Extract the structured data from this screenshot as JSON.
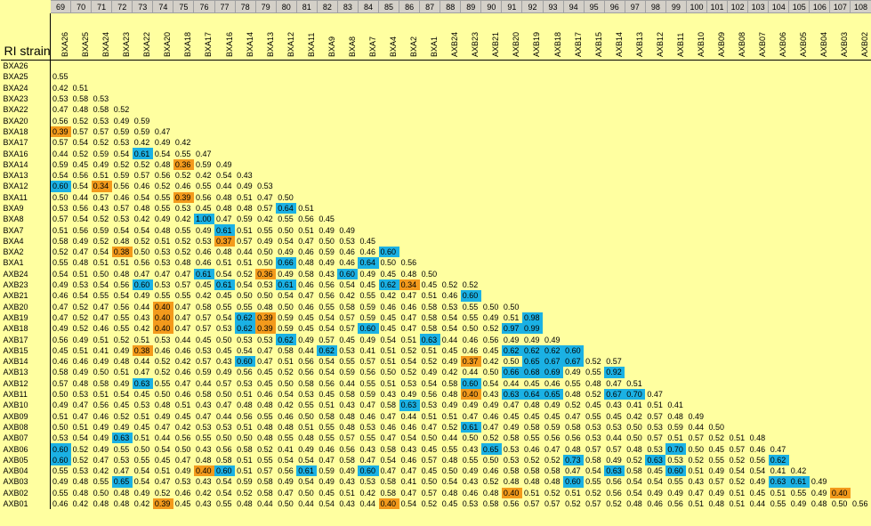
{
  "header_label": "RI strain",
  "colors": {
    "background": "#ffffa0",
    "low": "#f39a1c",
    "high": "#1bb1e4"
  },
  "col_numbers": [
    "69",
    "70",
    "71",
    "72",
    "73",
    "74",
    "75",
    "76",
    "77",
    "78",
    "79",
    "80",
    "81",
    "82",
    "83",
    "84",
    "85",
    "86",
    "87",
    "88",
    "89",
    "90",
    "91",
    "92",
    "93",
    "94",
    "95",
    "96",
    "97",
    "98",
    "99",
    "100",
    "101",
    "102",
    "103",
    "104",
    "105",
    "106",
    "107",
    "108"
  ],
  "strains": [
    "BXA26",
    "BXA25",
    "BXA24",
    "BXA23",
    "BXA22",
    "BXA20",
    "BXA18",
    "BXA17",
    "BXA16",
    "BXA14",
    "BXA13",
    "BXA12",
    "BXA11",
    "BXA9",
    "BXA8",
    "BXA7",
    "BXA4",
    "BXA2",
    "BXA1",
    "AXB24",
    "AXB23",
    "AXB21",
    "AXB20",
    "AXB19",
    "AXB18",
    "AXB17",
    "AXB15",
    "AXB14",
    "AXB13",
    "AXB12",
    "AXB11",
    "AXB10",
    "AXB09",
    "AXB08",
    "AXB07",
    "AXB06",
    "AXB05",
    "AXB04",
    "AXB03",
    "AXB02",
    "AXB01"
  ],
  "rows": [
    [],
    [
      "0.55"
    ],
    [
      "0.42",
      "0.51"
    ],
    [
      "0.53",
      "0.58",
      "0.53"
    ],
    [
      "0.47",
      "0.48",
      "0.58",
      "0.52"
    ],
    [
      "0.56",
      "0.52",
      "0.53",
      "0.49",
      "0.59"
    ],
    [
      "0.39",
      "0.57",
      "0.57",
      "0.59",
      "0.59",
      "0.47"
    ],
    [
      "0.57",
      "0.54",
      "0.52",
      "0.53",
      "0.42",
      "0.49",
      "0.42"
    ],
    [
      "0.44",
      "0.52",
      "0.59",
      "0.54",
      "0.61",
      "0.54",
      "0.55",
      "0.47"
    ],
    [
      "0.59",
      "0.45",
      "0.49",
      "0.52",
      "0.52",
      "0.48",
      "0.36",
      "0.59",
      "0.49"
    ],
    [
      "0.54",
      "0.56",
      "0.51",
      "0.59",
      "0.57",
      "0.56",
      "0.52",
      "0.42",
      "0.54",
      "0.43"
    ],
    [
      "0.60",
      "0.54",
      "0.34",
      "0.56",
      "0.46",
      "0.52",
      "0.46",
      "0.55",
      "0.44",
      "0.49",
      "0.53"
    ],
    [
      "0.50",
      "0.44",
      "0.57",
      "0.46",
      "0.54",
      "0.55",
      "0.39",
      "0.56",
      "0.48",
      "0.51",
      "0.47",
      "0.50"
    ],
    [
      "0.53",
      "0.56",
      "0.43",
      "0.57",
      "0.48",
      "0.55",
      "0.53",
      "0.45",
      "0.48",
      "0.48",
      "0.57",
      "0.64",
      "0.51"
    ],
    [
      "0.57",
      "0.54",
      "0.52",
      "0.53",
      "0.42",
      "0.49",
      "0.42",
      "1.00",
      "0.47",
      "0.59",
      "0.42",
      "0.55",
      "0.56",
      "0.45"
    ],
    [
      "0.51",
      "0.56",
      "0.59",
      "0.54",
      "0.54",
      "0.48",
      "0.55",
      "0.49",
      "0.61",
      "0.51",
      "0.55",
      "0.50",
      "0.51",
      "0.49",
      "0.49"
    ],
    [
      "0.58",
      "0.49",
      "0.52",
      "0.48",
      "0.52",
      "0.51",
      "0.52",
      "0.53",
      "0.37",
      "0.57",
      "0.49",
      "0.54",
      "0.47",
      "0.50",
      "0.53",
      "0.45"
    ],
    [
      "0.52",
      "0.47",
      "0.54",
      "0.38",
      "0.50",
      "0.53",
      "0.52",
      "0.46",
      "0.48",
      "0.44",
      "0.50",
      "0.49",
      "0.46",
      "0.59",
      "0.46",
      "0.46",
      "0.60"
    ],
    [
      "0.55",
      "0.48",
      "0.51",
      "0.51",
      "0.56",
      "0.53",
      "0.48",
      "0.46",
      "0.51",
      "0.51",
      "0.50",
      "0.66",
      "0.48",
      "0.49",
      "0.46",
      "0.64",
      "0.50",
      "0.56"
    ],
    [
      "0.54",
      "0.51",
      "0.50",
      "0.48",
      "0.47",
      "0.47",
      "0.47",
      "0.61",
      "0.54",
      "0.52",
      "0.36",
      "0.49",
      "0.58",
      "0.43",
      "0.60",
      "0.49",
      "0.45",
      "0.48",
      "0.50"
    ],
    [
      "0.49",
      "0.53",
      "0.54",
      "0.56",
      "0.60",
      "0.53",
      "0.57",
      "0.45",
      "0.61",
      "0.54",
      "0.53",
      "0.61",
      "0.46",
      "0.56",
      "0.54",
      "0.45",
      "0.62",
      "0.34",
      "0.45",
      "0.52",
      "0.52"
    ],
    [
      "0.46",
      "0.54",
      "0.55",
      "0.54",
      "0.49",
      "0.55",
      "0.55",
      "0.42",
      "0.45",
      "0.50",
      "0.50",
      "0.54",
      "0.47",
      "0.56",
      "0.42",
      "0.55",
      "0.42",
      "0.47",
      "0.51",
      "0.46",
      "0.60"
    ],
    [
      "0.47",
      "0.52",
      "0.47",
      "0.56",
      "0.44",
      "0.40",
      "0.47",
      "0.58",
      "0.55",
      "0.55",
      "0.48",
      "0.50",
      "0.46",
      "0.55",
      "0.58",
      "0.59",
      "0.46",
      "0.46",
      "0.58",
      "0.53",
      "0.55",
      "0.50",
      "0.50"
    ],
    [
      "0.47",
      "0.52",
      "0.47",
      "0.55",
      "0.43",
      "0.40",
      "0.47",
      "0.57",
      "0.54",
      "0.62",
      "0.39",
      "0.59",
      "0.45",
      "0.54",
      "0.57",
      "0.59",
      "0.45",
      "0.47",
      "0.58",
      "0.54",
      "0.55",
      "0.49",
      "0.51",
      "0.98"
    ],
    [
      "0.49",
      "0.52",
      "0.46",
      "0.55",
      "0.42",
      "0.40",
      "0.47",
      "0.57",
      "0.53",
      "0.62",
      "0.39",
      "0.59",
      "0.45",
      "0.54",
      "0.57",
      "0.60",
      "0.45",
      "0.47",
      "0.58",
      "0.54",
      "0.50",
      "0.52",
      "0.97",
      "0.99"
    ],
    [
      "0.56",
      "0.49",
      "0.51",
      "0.52",
      "0.51",
      "0.53",
      "0.44",
      "0.45",
      "0.50",
      "0.53",
      "0.53",
      "0.62",
      "0.49",
      "0.57",
      "0.45",
      "0.49",
      "0.54",
      "0.51",
      "0.63",
      "0.44",
      "0.46",
      "0.56",
      "0.49",
      "0.49",
      "0.49"
    ],
    [
      "0.45",
      "0.51",
      "0.41",
      "0.49",
      "0.38",
      "0.46",
      "0.46",
      "0.53",
      "0.45",
      "0.54",
      "0.47",
      "0.58",
      "0.44",
      "0.62",
      "0.53",
      "0.41",
      "0.51",
      "0.52",
      "0.51",
      "0.45",
      "0.46",
      "0.45",
      "0.62",
      "0.62",
      "0.62",
      "0.60"
    ],
    [
      "0.46",
      "0.46",
      "0.49",
      "0.48",
      "0.44",
      "0.52",
      "0.42",
      "0.57",
      "0.43",
      "0.60",
      "0.47",
      "0.51",
      "0.56",
      "0.54",
      "0.55",
      "0.57",
      "0.51",
      "0.54",
      "0.52",
      "0.49",
      "0.37",
      "0.42",
      "0.50",
      "0.65",
      "0.67",
      "0.67",
      "0.52",
      "0.57"
    ],
    [
      "0.58",
      "0.49",
      "0.50",
      "0.51",
      "0.47",
      "0.52",
      "0.46",
      "0.59",
      "0.49",
      "0.56",
      "0.45",
      "0.52",
      "0.56",
      "0.54",
      "0.59",
      "0.56",
      "0.50",
      "0.52",
      "0.49",
      "0.42",
      "0.44",
      "0.50",
      "0.66",
      "0.68",
      "0.69",
      "0.49",
      "0.55",
      "0.92"
    ],
    [
      "0.57",
      "0.48",
      "0.58",
      "0.49",
      "0.63",
      "0.55",
      "0.47",
      "0.44",
      "0.57",
      "0.53",
      "0.45",
      "0.50",
      "0.58",
      "0.56",
      "0.44",
      "0.55",
      "0.51",
      "0.53",
      "0.54",
      "0.58",
      "0.60",
      "0.54",
      "0.44",
      "0.45",
      "0.46",
      "0.55",
      "0.48",
      "0.47",
      "0.51"
    ],
    [
      "0.50",
      "0.53",
      "0.51",
      "0.54",
      "0.45",
      "0.50",
      "0.46",
      "0.58",
      "0.50",
      "0.51",
      "0.46",
      "0.54",
      "0.53",
      "0.45",
      "0.58",
      "0.59",
      "0.43",
      "0.49",
      "0.56",
      "0.48",
      "0.40",
      "0.43",
      "0.63",
      "0.64",
      "0.65",
      "0.48",
      "0.52",
      "0.67",
      "0.70",
      "0.47"
    ],
    [
      "0.49",
      "0.47",
      "0.56",
      "0.45",
      "0.53",
      "0.48",
      "0.51",
      "0.43",
      "0.47",
      "0.48",
      "0.48",
      "0.42",
      "0.55",
      "0.51",
      "0.43",
      "0.47",
      "0.58",
      "0.63",
      "0.53",
      "0.49",
      "0.49",
      "0.49",
      "0.47",
      "0.48",
      "0.49",
      "0.52",
      "0.45",
      "0.43",
      "0.41",
      "0.51",
      "0.41"
    ],
    [
      "0.51",
      "0.47",
      "0.46",
      "0.52",
      "0.51",
      "0.49",
      "0.45",
      "0.47",
      "0.44",
      "0.56",
      "0.55",
      "0.46",
      "0.50",
      "0.58",
      "0.48",
      "0.46",
      "0.47",
      "0.44",
      "0.51",
      "0.51",
      "0.47",
      "0.46",
      "0.45",
      "0.45",
      "0.45",
      "0.47",
      "0.55",
      "0.45",
      "0.42",
      "0.57",
      "0.48",
      "0.49"
    ],
    [
      "0.50",
      "0.51",
      "0.49",
      "0.49",
      "0.45",
      "0.47",
      "0.42",
      "0.53",
      "0.53",
      "0.51",
      "0.48",
      "0.48",
      "0.51",
      "0.55",
      "0.48",
      "0.53",
      "0.46",
      "0.46",
      "0.47",
      "0.52",
      "0.61",
      "0.47",
      "0.49",
      "0.58",
      "0.59",
      "0.58",
      "0.53",
      "0.53",
      "0.50",
      "0.53",
      "0.59",
      "0.44",
      "0.50"
    ],
    [
      "0.53",
      "0.54",
      "0.49",
      "0.63",
      "0.51",
      "0.44",
      "0.56",
      "0.55",
      "0.50",
      "0.50",
      "0.48",
      "0.55",
      "0.48",
      "0.55",
      "0.57",
      "0.55",
      "0.47",
      "0.54",
      "0.50",
      "0.44",
      "0.50",
      "0.52",
      "0.58",
      "0.55",
      "0.56",
      "0.56",
      "0.53",
      "0.44",
      "0.50",
      "0.57",
      "0.51",
      "0.57",
      "0.52",
      "0.51",
      "0.48"
    ],
    [
      "0.60",
      "0.52",
      "0.49",
      "0.55",
      "0.50",
      "0.54",
      "0.50",
      "0.43",
      "0.56",
      "0.58",
      "0.52",
      "0.41",
      "0.49",
      "0.46",
      "0.56",
      "0.43",
      "0.58",
      "0.43",
      "0.45",
      "0.55",
      "0.43",
      "0.65",
      "0.53",
      "0.46",
      "0.47",
      "0.48",
      "0.57",
      "0.57",
      "0.48",
      "0.53",
      "0.70",
      "0.50",
      "0.45",
      "0.57",
      "0.46",
      "0.47"
    ],
    [
      "0.60",
      "0.52",
      "0.47",
      "0.53",
      "0.55",
      "0.45",
      "0.47",
      "0.48",
      "0.58",
      "0.51",
      "0.55",
      "0.54",
      "0.54",
      "0.47",
      "0.58",
      "0.47",
      "0.54",
      "0.46",
      "0.57",
      "0.48",
      "0.55",
      "0.50",
      "0.53",
      "0.52",
      "0.52",
      "0.73",
      "0.58",
      "0.49",
      "0.52",
      "0.63",
      "0.53",
      "0.52",
      "0.55",
      "0.52",
      "0.56",
      "0.62"
    ],
    [
      "0.55",
      "0.53",
      "0.42",
      "0.47",
      "0.54",
      "0.51",
      "0.49",
      "0.40",
      "0.60",
      "0.51",
      "0.57",
      "0.56",
      "0.61",
      "0.59",
      "0.49",
      "0.60",
      "0.47",
      "0.47",
      "0.45",
      "0.50",
      "0.49",
      "0.46",
      "0.58",
      "0.58",
      "0.58",
      "0.47",
      "0.54",
      "0.63",
      "0.58",
      "0.45",
      "0.60",
      "0.51",
      "0.49",
      "0.54",
      "0.54",
      "0.41",
      "0.42"
    ],
    [
      "0.49",
      "0.48",
      "0.55",
      "0.65",
      "0.54",
      "0.47",
      "0.53",
      "0.43",
      "0.54",
      "0.59",
      "0.58",
      "0.49",
      "0.54",
      "0.49",
      "0.43",
      "0.53",
      "0.58",
      "0.41",
      "0.50",
      "0.54",
      "0.43",
      "0.52",
      "0.48",
      "0.48",
      "0.48",
      "0.60",
      "0.55",
      "0.56",
      "0.54",
      "0.54",
      "0.55",
      "0.43",
      "0.57",
      "0.52",
      "0.49",
      "0.63",
      "0.61",
      "0.49"
    ],
    [
      "0.55",
      "0.48",
      "0.50",
      "0.48",
      "0.49",
      "0.52",
      "0.46",
      "0.42",
      "0.54",
      "0.52",
      "0.58",
      "0.47",
      "0.50",
      "0.45",
      "0.51",
      "0.42",
      "0.58",
      "0.47",
      "0.57",
      "0.48",
      "0.46",
      "0.48",
      "0.40",
      "0.51",
      "0.52",
      "0.51",
      "0.52",
      "0.56",
      "0.54",
      "0.49",
      "0.49",
      "0.47",
      "0.49",
      "0.51",
      "0.45",
      "0.51",
      "0.55",
      "0.49",
      "0.40"
    ],
    [
      "0.46",
      "0.42",
      "0.48",
      "0.48",
      "0.42",
      "0.39",
      "0.45",
      "0.43",
      "0.55",
      "0.48",
      "0.44",
      "0.50",
      "0.44",
      "0.54",
      "0.43",
      "0.44",
      "0.40",
      "0.54",
      "0.52",
      "0.45",
      "0.53",
      "0.58",
      "0.56",
      "0.57",
      "0.57",
      "0.52",
      "0.57",
      "0.52",
      "0.48",
      "0.46",
      "0.56",
      "0.51",
      "0.48",
      "0.51",
      "0.44",
      "0.55",
      "0.49",
      "0.48",
      "0.50",
      "0.56"
    ]
  ]
}
